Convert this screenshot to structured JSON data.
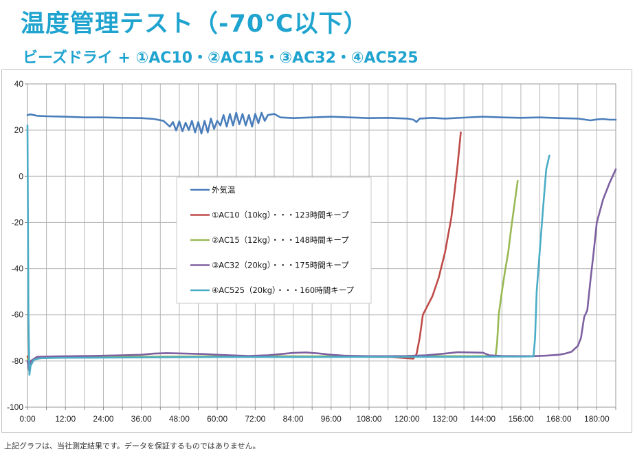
{
  "header": {
    "title": "温度管理テスト（-70℃以下）",
    "subtitle": "ビーズドライ + ①AC10・②AC15・③AC32・④AC525"
  },
  "footer": {
    "note": "上記グラフは、当社測定結果です。データを保証するものではありません。"
  },
  "chart_data": {
    "type": "line",
    "title": "",
    "xlabel": "",
    "ylabel": "",
    "x_unit": "hours",
    "xlim": [
      0,
      186
    ],
    "ylim": [
      -100,
      40
    ],
    "y_ticks": [
      40,
      20,
      0,
      -20,
      -40,
      -60,
      -80,
      -100
    ],
    "x_ticks": [
      "0:00",
      "12:00",
      "24:00",
      "36:00",
      "48:00",
      "60:00",
      "72:00",
      "84:00",
      "96:00",
      "108:00",
      "120:00",
      "132:00",
      "144:00",
      "156:00",
      "168:00",
      "180:00"
    ],
    "grid": true,
    "legend_position": "center-left",
    "series": [
      {
        "name": "外気温",
        "color": "#4a7ebb",
        "points": [
          [
            0,
            26.5
          ],
          [
            1,
            26.8
          ],
          [
            3,
            26.2
          ],
          [
            6,
            26.0
          ],
          [
            12,
            25.8
          ],
          [
            18,
            25.5
          ],
          [
            24,
            25.5
          ],
          [
            30,
            25.3
          ],
          [
            36,
            25.2
          ],
          [
            40,
            24.8
          ],
          [
            43,
            24.0
          ],
          [
            45,
            21.5
          ],
          [
            46,
            23.5
          ],
          [
            47,
            19.8
          ],
          [
            48,
            23.8
          ],
          [
            49,
            19.5
          ],
          [
            50,
            23.2
          ],
          [
            51,
            20.0
          ],
          [
            52,
            24.0
          ],
          [
            53,
            19.0
          ],
          [
            54,
            23.5
          ],
          [
            55,
            18.5
          ],
          [
            56,
            24.0
          ],
          [
            57,
            19.0
          ],
          [
            58,
            25.0
          ],
          [
            59,
            20.5
          ],
          [
            60,
            24.0
          ],
          [
            61,
            22.0
          ],
          [
            62,
            26.5
          ],
          [
            63,
            21.5
          ],
          [
            64,
            27.0
          ],
          [
            65,
            22.0
          ],
          [
            66,
            27.5
          ],
          [
            67,
            22.5
          ],
          [
            68,
            27.0
          ],
          [
            69,
            22.0
          ],
          [
            70,
            26.5
          ],
          [
            71,
            21.5
          ],
          [
            72,
            27.0
          ],
          [
            73,
            23.0
          ],
          [
            74,
            27.5
          ],
          [
            75,
            24.0
          ],
          [
            76,
            26.5
          ],
          [
            78,
            27.0
          ],
          [
            80,
            25.5
          ],
          [
            84,
            25.2
          ],
          [
            90,
            25.5
          ],
          [
            96,
            25.8
          ],
          [
            102,
            25.5
          ],
          [
            108,
            25.2
          ],
          [
            114,
            25.3
          ],
          [
            120,
            25.0
          ],
          [
            122,
            24.5
          ],
          [
            123,
            23.5
          ],
          [
            124,
            25.0
          ],
          [
            128,
            25.3
          ],
          [
            132,
            25.0
          ],
          [
            138,
            25.4
          ],
          [
            144,
            25.8
          ],
          [
            150,
            25.5
          ],
          [
            156,
            25.3
          ],
          [
            162,
            25.5
          ],
          [
            168,
            25.2
          ],
          [
            174,
            25.0
          ],
          [
            178,
            24.2
          ],
          [
            180,
            24.6
          ],
          [
            182,
            24.8
          ],
          [
            184,
            24.5
          ],
          [
            186,
            24.5
          ]
        ]
      },
      {
        "name": "①AC10（10kg）・・・123時間キープ",
        "color": "#be4b48",
        "points": [
          [
            0,
            -78
          ],
          [
            0.5,
            -81
          ],
          [
            1,
            -80
          ],
          [
            3,
            -79
          ],
          [
            6,
            -78.5
          ],
          [
            20,
            -78.3
          ],
          [
            40,
            -78.2
          ],
          [
            60,
            -78.1
          ],
          [
            80,
            -78.0
          ],
          [
            100,
            -78.1
          ],
          [
            115,
            -78.3
          ],
          [
            120,
            -78.8
          ],
          [
            122,
            -79.0
          ],
          [
            123,
            -77
          ],
          [
            124,
            -70
          ],
          [
            125,
            -60
          ],
          [
            128,
            -52
          ],
          [
            130,
            -44
          ],
          [
            132,
            -33
          ],
          [
            134,
            -18
          ],
          [
            135,
            -7
          ],
          [
            136,
            5
          ],
          [
            137,
            19
          ]
        ]
      },
      {
        "name": "②AC15（12kg）・・・148時間キープ",
        "color": "#98b954",
        "points": [
          [
            0,
            -79
          ],
          [
            0.5,
            -82
          ],
          [
            1,
            -80
          ],
          [
            3,
            -78.5
          ],
          [
            6,
            -78.3
          ],
          [
            30,
            -78.2
          ],
          [
            60,
            -78.0
          ],
          [
            90,
            -78.0
          ],
          [
            110,
            -77.9
          ],
          [
            130,
            -77.9
          ],
          [
            140,
            -77.9
          ],
          [
            148,
            -77.9
          ],
          [
            148.5,
            -72
          ],
          [
            149,
            -60
          ],
          [
            150,
            -50
          ],
          [
            151,
            -41
          ],
          [
            152,
            -33
          ],
          [
            153,
            -22
          ],
          [
            154,
            -12
          ],
          [
            155,
            -2
          ]
        ]
      },
      {
        "name": "③AC32（20kg）・・・175時間キープ",
        "color": "#7d60a0",
        "points": [
          [
            0,
            -80
          ],
          [
            0.5,
            -84
          ],
          [
            1,
            -80
          ],
          [
            3,
            -78.2
          ],
          [
            10,
            -78.0
          ],
          [
            20,
            -77.8
          ],
          [
            30,
            -77.5
          ],
          [
            36,
            -77.3
          ],
          [
            40,
            -76.8
          ],
          [
            44,
            -76.6
          ],
          [
            50,
            -76.8
          ],
          [
            56,
            -77.0
          ],
          [
            60,
            -77.3
          ],
          [
            64,
            -77.5
          ],
          [
            70,
            -77.8
          ],
          [
            76,
            -77.5
          ],
          [
            80,
            -77.0
          ],
          [
            84,
            -76.5
          ],
          [
            88,
            -76.3
          ],
          [
            92,
            -76.7
          ],
          [
            96,
            -77.3
          ],
          [
            100,
            -77.7
          ],
          [
            108,
            -77.9
          ],
          [
            114,
            -77.9
          ],
          [
            120,
            -77.8
          ],
          [
            126,
            -77.5
          ],
          [
            132,
            -76.8
          ],
          [
            136,
            -76.2
          ],
          [
            140,
            -76.3
          ],
          [
            144,
            -76.4
          ],
          [
            146,
            -77.5
          ],
          [
            150,
            -77.8
          ],
          [
            156,
            -77.9
          ],
          [
            160,
            -77.9
          ],
          [
            164,
            -77.7
          ],
          [
            168,
            -77.3
          ],
          [
            170,
            -76.8
          ],
          [
            172,
            -76.0
          ],
          [
            174,
            -73.5
          ],
          [
            175,
            -70
          ],
          [
            176,
            -61
          ],
          [
            177,
            -58
          ],
          [
            178,
            -45
          ],
          [
            179,
            -33
          ],
          [
            180,
            -20
          ],
          [
            182,
            -10
          ],
          [
            184,
            -3
          ],
          [
            186,
            3
          ]
        ]
      },
      {
        "name": "④AC525（20kg）・・・160時間キープ",
        "color": "#4bacc6",
        "points": [
          [
            0,
            22
          ],
          [
            0.3,
            -60
          ],
          [
            0.6,
            -86
          ],
          [
            1,
            -82
          ],
          [
            2,
            -79.5
          ],
          [
            4,
            -78.8
          ],
          [
            10,
            -78.6
          ],
          [
            30,
            -78.5
          ],
          [
            60,
            -78.3
          ],
          [
            90,
            -78.3
          ],
          [
            120,
            -78.2
          ],
          [
            140,
            -78.2
          ],
          [
            150,
            -78.1
          ],
          [
            157,
            -78.1
          ],
          [
            160,
            -78.0
          ],
          [
            160.5,
            -70
          ],
          [
            161,
            -50
          ],
          [
            162,
            -32
          ],
          [
            163,
            -14
          ],
          [
            164,
            3
          ],
          [
            165,
            9
          ]
        ]
      }
    ]
  }
}
